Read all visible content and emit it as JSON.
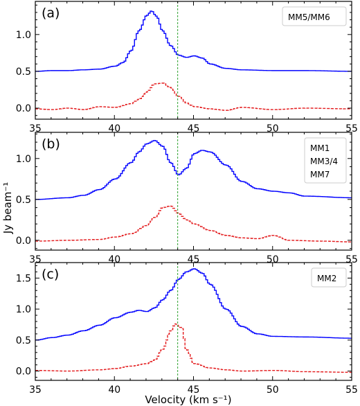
{
  "chart_data": [
    {
      "type": "line",
      "panel_label": "(a)",
      "legend": [
        "MM5/MM6"
      ],
      "xlim": [
        35,
        55
      ],
      "ylim": [
        -0.15,
        1.45
      ],
      "x_ticks": [
        35,
        40,
        45,
        50,
        55
      ],
      "y_ticks": [
        0.0,
        0.5,
        1.0
      ],
      "y_tick_labels": [
        "0.0",
        "0.5",
        "1.0"
      ],
      "vline_x": 44.0,
      "series": [
        {
          "color": "#0000ff",
          "style": "steps-solid",
          "x": [
            35,
            36,
            37,
            38,
            39,
            40,
            40.5,
            41,
            41.5,
            42,
            42.3,
            42.6,
            43,
            43.5,
            44,
            44.5,
            45,
            45.5,
            46,
            47,
            48,
            50,
            52,
            55
          ],
          "y": [
            0.5,
            0.51,
            0.51,
            0.52,
            0.53,
            0.57,
            0.62,
            0.78,
            1.05,
            1.26,
            1.32,
            1.25,
            1.05,
            0.85,
            0.72,
            0.69,
            0.71,
            0.68,
            0.6,
            0.54,
            0.52,
            0.51,
            0.51,
            0.5
          ]
        },
        {
          "color": "#e31a1c",
          "style": "steps-dashed",
          "x": [
            35,
            36,
            37,
            38,
            39,
            40,
            41,
            41.5,
            42,
            42.5,
            43,
            43.5,
            44,
            44.5,
            45,
            46,
            47,
            48,
            50,
            52,
            55
          ],
          "y": [
            -0.01,
            -0.02,
            0.0,
            -0.02,
            0.02,
            0.01,
            0.06,
            0.12,
            0.22,
            0.33,
            0.34,
            0.28,
            0.16,
            0.07,
            0.02,
            -0.01,
            -0.03,
            0.01,
            -0.02,
            0.0,
            -0.01
          ]
        }
      ]
    },
    {
      "type": "line",
      "panel_label": "(b)",
      "legend": [
        "MM1",
        "MM3/4",
        "MM7"
      ],
      "xlim": [
        35,
        55
      ],
      "ylim": [
        -0.12,
        1.32
      ],
      "x_ticks": [
        35,
        40,
        45,
        50,
        55
      ],
      "y_ticks": [
        0.0,
        0.5,
        1.0
      ],
      "y_tick_labels": [
        "0.0",
        "0.5",
        "1.0"
      ],
      "vline_x": 44.0,
      "series": [
        {
          "color": "#0000ff",
          "style": "steps-solid",
          "x": [
            35,
            37,
            38,
            39,
            40,
            41,
            41.5,
            42,
            42.5,
            43,
            43.5,
            44,
            44.5,
            45,
            45.5,
            46,
            47,
            48,
            49,
            50,
            51,
            52,
            55
          ],
          "y": [
            0.5,
            0.52,
            0.55,
            0.62,
            0.75,
            0.95,
            1.08,
            1.18,
            1.22,
            1.15,
            0.95,
            0.8,
            0.88,
            1.06,
            1.1,
            1.08,
            0.92,
            0.72,
            0.63,
            0.6,
            0.58,
            0.54,
            0.52
          ]
        },
        {
          "color": "#e31a1c",
          "style": "steps-dashed",
          "x": [
            35,
            37,
            39,
            40,
            41,
            42,
            42.5,
            43,
            43.5,
            44,
            44.5,
            45,
            46,
            47,
            48,
            49,
            50,
            51,
            53,
            55
          ],
          "y": [
            -0.01,
            0.0,
            0.01,
            0.04,
            0.08,
            0.18,
            0.28,
            0.4,
            0.42,
            0.33,
            0.25,
            0.2,
            0.12,
            0.06,
            0.03,
            0.02,
            0.06,
            0.0,
            -0.01,
            -0.02
          ]
        }
      ]
    },
    {
      "type": "line",
      "panel_label": "(c)",
      "legend": [
        "MM2"
      ],
      "xlim": [
        35,
        55
      ],
      "ylim": [
        -0.15,
        1.75
      ],
      "x_ticks": [
        35,
        40,
        45,
        50,
        55
      ],
      "y_ticks": [
        0.0,
        0.5,
        1.0,
        1.5
      ],
      "y_tick_labels": [
        "0.0",
        "0.5",
        "1.0",
        "1.5"
      ],
      "vline_x": 44.0,
      "series": [
        {
          "color": "#0000ff",
          "style": "steps-solid",
          "x": [
            35,
            36,
            37,
            38,
            39,
            40,
            41,
            41.5,
            42,
            42.5,
            43,
            43.5,
            44,
            44.5,
            45,
            45.5,
            46,
            47,
            48,
            49,
            50,
            52,
            55
          ],
          "y": [
            0.5,
            0.54,
            0.58,
            0.65,
            0.74,
            0.86,
            0.95,
            0.98,
            0.96,
            1.02,
            1.15,
            1.3,
            1.48,
            1.6,
            1.65,
            1.58,
            1.4,
            1.0,
            0.72,
            0.6,
            0.56,
            0.55,
            0.53
          ]
        },
        {
          "color": "#e31a1c",
          "style": "steps-dashed",
          "x": [
            35,
            37,
            39,
            40,
            41,
            42,
            42.5,
            43,
            43.5,
            43.8,
            44.2,
            44.5,
            45,
            46,
            47,
            48,
            50,
            52,
            55
          ],
          "y": [
            0.01,
            0.0,
            0.02,
            0.04,
            0.08,
            0.12,
            0.18,
            0.35,
            0.65,
            0.76,
            0.7,
            0.35,
            0.12,
            0.05,
            0.02,
            0.0,
            0.01,
            -0.01,
            -0.02
          ]
        }
      ]
    }
  ],
  "xlabel": "Velocity (km s⁻¹)",
  "ylabel": "Jy beam⁻¹",
  "colors": {
    "solid": "#0000ff",
    "dashed": "#e31a1c",
    "vline": "#2ca02c"
  }
}
